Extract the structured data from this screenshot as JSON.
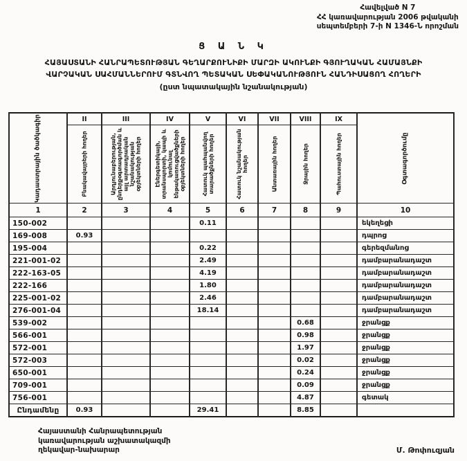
{
  "appendix": {
    "line1": "Հավելված N 7",
    "line2": "ՀՀ կառավարության 2006 թվականի",
    "line3": "սեպտեմբերի 7-ի  N 1346-Ն որոշման"
  },
  "title": "Ց Ա Ն Կ",
  "heading": {
    "line1": "ՀԱՅԱՍՏԱՆԻ ՀԱՆՐԱՊԵՏՈՒԹՅԱՆ ԳԵՂԱՐՔՈՒՆԻՔԻ ՄԱՐԶԻ ԱԿՈՒՆՔԻ ԳՅՈՒՂԱԿԱՆ ՀԱՄԱՅՆՔԻ",
    "line2": "ՎԱՐՉԱԿԱՆ ՍԱՀՄԱՆՆԵՐՈՒՄ ԳՏՆՎՈՂ ՊԵՏԱԿԱՆ ՍԵՓԱԿԱՆՈՒԹՅՈՒՆ ՀԱՆԴԻՍԱՑՈՂ ՀՈՂԵՐԻ",
    "subtitle": "(ըստ նպատակային նշանակության)"
  },
  "table": {
    "headers": {
      "col1": "Կադաստրային ծածկագիր",
      "col10": "Օգտագործումը",
      "romans": [
        "II",
        "III",
        "IV",
        "V",
        "VI",
        "VII",
        "VIII",
        "IX"
      ],
      "labels": [
        "Բնակավայրերի հողեր",
        "Արդյունաբերության, ընդերքօգտագործման և այլ արտադրական նշանակության օբյեկտների հողեր",
        "Էներգետիկայի, տրանսպորտի, կապի և կոմունալ ենթակառուցվածքների օբյեկտների հողեր",
        "Հատուկ պահպանվող տարածքների հողեր",
        "Հատուկ նշանակության հողեր",
        "Անտառային հողեր",
        "Ջրային հողեր",
        "Պահուստային հողեր"
      ],
      "numbers": [
        "1",
        "2",
        "3",
        "4",
        "5",
        "6",
        "7",
        "8",
        "9",
        "10"
      ]
    },
    "rows": [
      {
        "code": "150-002",
        "cells": [
          "",
          "",
          "",
          "0.11",
          "",
          "",
          "",
          ""
        ],
        "note": "եկեղեցի"
      },
      {
        "code": "169-008",
        "cells": [
          "0.93",
          "",
          "",
          "",
          "",
          "",
          "",
          ""
        ],
        "note": "դպրոց"
      },
      {
        "code": "195-004",
        "cells": [
          "",
          "",
          "",
          "0.22",
          "",
          "",
          "",
          ""
        ],
        "note": "գերեզմանոց"
      },
      {
        "code": "221-001-02",
        "cells": [
          "",
          "",
          "",
          "2.49",
          "",
          "",
          "",
          ""
        ],
        "note": "դամբարանադաշտ"
      },
      {
        "code": "222-163-05",
        "cells": [
          "",
          "",
          "",
          "4.19",
          "",
          "",
          "",
          ""
        ],
        "note": "դամբարանադաշտ"
      },
      {
        "code": "222-166",
        "cells": [
          "",
          "",
          "",
          "1.80",
          "",
          "",
          "",
          ""
        ],
        "note": "դամբարանադաշտ"
      },
      {
        "code": "225-001-02",
        "cells": [
          "",
          "",
          "",
          "2.46",
          "",
          "",
          "",
          ""
        ],
        "note": "դամբարանադաշտ"
      },
      {
        "code": "276-001-04",
        "cells": [
          "",
          "",
          "",
          "18.14",
          "",
          "",
          "",
          ""
        ],
        "note": "դամբարանադաշտ"
      },
      {
        "code": "539-002",
        "cells": [
          "",
          "",
          "",
          "",
          "",
          "",
          "0.68",
          ""
        ],
        "note": "ջրանցք"
      },
      {
        "code": "566-001",
        "cells": [
          "",
          "",
          "",
          "",
          "",
          "",
          "0.98",
          ""
        ],
        "note": "ջրանցք"
      },
      {
        "code": "572-001",
        "cells": [
          "",
          "",
          "",
          "",
          "",
          "",
          "1.97",
          ""
        ],
        "note": "ջրանցք"
      },
      {
        "code": "572-003",
        "cells": [
          "",
          "",
          "",
          "",
          "",
          "",
          "0.02",
          ""
        ],
        "note": "ջրանցք"
      },
      {
        "code": "650-001",
        "cells": [
          "",
          "",
          "",
          "",
          "",
          "",
          "0.24",
          ""
        ],
        "note": "ջրանցք"
      },
      {
        "code": "709-001",
        "cells": [
          "",
          "",
          "",
          "",
          "",
          "",
          "0.09",
          ""
        ],
        "note": "ջրանցք"
      },
      {
        "code": "756-001",
        "cells": [
          "",
          "",
          "",
          "",
          "",
          "",
          "4.87",
          ""
        ],
        "note": "գետակ"
      },
      {
        "code": "Ընդամենը",
        "cells": [
          "0.93",
          "",
          "",
          "29.41",
          "",
          "",
          "8.85",
          ""
        ],
        "note": "",
        "total": true
      }
    ]
  },
  "footer": {
    "line1": "Հայաստանի Հանրապետության",
    "line2": "կառավարության աշխատակազմի",
    "line3": "ղեկավար-նախարար",
    "signature": "Մ. Թոփուզյան"
  }
}
